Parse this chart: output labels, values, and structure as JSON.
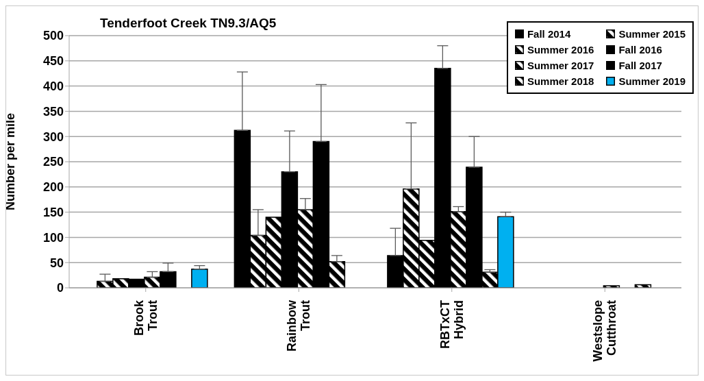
{
  "chart_data": {
    "type": "bar",
    "title": "Tenderfoot Creek TN9.3/AQ5",
    "ylabel": "Number per mile",
    "categories": [
      "Brook Trout",
      "Rainbow Trout",
      "RBTxCT Hybrid",
      "Westslope Cutthroat"
    ],
    "series": [
      {
        "name": "Fall 2014",
        "color": "#000000",
        "values": [
          null,
          312,
          64,
          null
        ],
        "errors": [
          null,
          [
            312,
            428
          ],
          [
            64,
            118
          ],
          null
        ]
      },
      {
        "name": "Summer 2015",
        "color": "#000000",
        "values": [
          13,
          104,
          196,
          null
        ],
        "errors": [
          [
            13,
            27
          ],
          [
            104,
            155
          ],
          [
            196,
            327
          ],
          null
        ]
      },
      {
        "name": "Summer 2016",
        "color": "#000000",
        "values": [
          18,
          140,
          94,
          null
        ]
      },
      {
        "name": "Fall 2016",
        "color": "#000000",
        "values": [
          17,
          230,
          435,
          null
        ],
        "errors": [
          null,
          [
            230,
            311
          ],
          [
            435,
            480
          ],
          null
        ]
      },
      {
        "name": "Summer 2017",
        "color": "#000000",
        "values": [
          21,
          155,
          151,
          4
        ],
        "errors": [
          [
            21,
            32
          ],
          [
            155,
            177
          ],
          [
            151,
            161
          ],
          null
        ]
      },
      {
        "name": "Fall 2017",
        "color": "#000000",
        "values": [
          32,
          290,
          239,
          null
        ],
        "errors": [
          [
            32,
            49
          ],
          [
            290,
            403
          ],
          [
            239,
            300
          ],
          null
        ]
      },
      {
        "name": "Summer 2018",
        "color": "#000000",
        "values": [
          null,
          52,
          31,
          6
        ],
        "errors": [
          null,
          [
            52,
            64
          ],
          [
            31,
            36
          ],
          null
        ]
      },
      {
        "name": "Summer 2019",
        "color": "#00b0f0",
        "values": [
          37,
          null,
          141,
          null
        ],
        "errors": [
          [
            37,
            44
          ],
          null,
          [
            141,
            150
          ],
          null
        ]
      }
    ],
    "ylim": [
      0,
      500
    ],
    "yticks": [
      0,
      50,
      100,
      150,
      200,
      250,
      300,
      350,
      400,
      450,
      500
    ],
    "grid": "y",
    "legend": "top right"
  }
}
